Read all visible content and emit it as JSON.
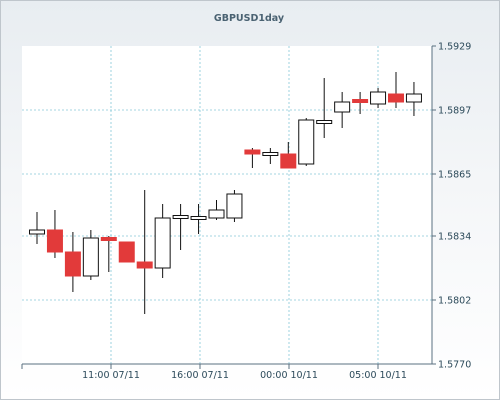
{
  "chart_data": {
    "type": "candlestick",
    "title": "GBPUSD1day",
    "y_ticks": [
      "1.5929",
      "1.5897",
      "1.5865",
      "1.5834",
      "1.5802",
      "1.5770"
    ],
    "ylim": [
      1.577,
      1.5929
    ],
    "x_ticks": [
      "11:00 07/11",
      "16:00 07/11",
      "00:00 10/11",
      "05:00 10/11"
    ],
    "grid": true,
    "candles": [
      {
        "open": 1.5835,
        "high": 1.5846,
        "low": 1.583,
        "close": 1.5837
      },
      {
        "open": 1.5837,
        "high": 1.5847,
        "low": 1.5823,
        "close": 1.5826
      },
      {
        "open": 1.5826,
        "high": 1.5836,
        "low": 1.5806,
        "close": 1.5814
      },
      {
        "open": 1.5814,
        "high": 1.5837,
        "low": 1.5812,
        "close": 1.5833
      },
      {
        "open": 1.5833,
        "high": 1.5834,
        "low": 1.5816,
        "close": 1.5832
      },
      {
        "open": 1.5831,
        "high": 1.5831,
        "low": 1.5821,
        "close": 1.5821
      },
      {
        "open": 1.5821,
        "high": 1.5857,
        "low": 1.5795,
        "close": 1.5818
      },
      {
        "open": 1.5818,
        "high": 1.585,
        "low": 1.5813,
        "close": 1.5843
      },
      {
        "open": 1.5843,
        "high": 1.585,
        "low": 1.5827,
        "close": 1.5844
      },
      {
        "open": 1.5843,
        "high": 1.585,
        "low": 1.5835,
        "close": 1.5843
      },
      {
        "open": 1.5843,
        "high": 1.5852,
        "low": 1.5842,
        "close": 1.5847
      },
      {
        "open": 1.5843,
        "high": 1.5857,
        "low": 1.5841,
        "close": 1.5855
      },
      {
        "open": 1.5877,
        "high": 1.5878,
        "low": 1.5868,
        "close": 1.5875
      },
      {
        "open": 1.5875,
        "high": 1.5878,
        "low": 1.587,
        "close": 1.5875
      },
      {
        "open": 1.5875,
        "high": 1.5881,
        "low": 1.5868,
        "close": 1.5868
      },
      {
        "open": 1.587,
        "high": 1.5893,
        "low": 1.5869,
        "close": 1.5892
      },
      {
        "open": 1.5891,
        "high": 1.5913,
        "low": 1.5883,
        "close": 1.5891
      },
      {
        "open": 1.5896,
        "high": 1.5906,
        "low": 1.5888,
        "close": 1.5901
      },
      {
        "open": 1.5902,
        "high": 1.5906,
        "low": 1.5895,
        "close": 1.5901
      },
      {
        "open": 1.59,
        "high": 1.5908,
        "low": 1.5898,
        "close": 1.5906
      },
      {
        "open": 1.5905,
        "high": 1.5916,
        "low": 1.5898,
        "close": 1.5901
      },
      {
        "open": 1.5901,
        "high": 1.5911,
        "low": 1.5894,
        "close": 1.5905
      }
    ],
    "colors": {
      "up_fill": "#ffffff",
      "down_fill": "#e23a3a",
      "outline": "#111111",
      "grid": "#86c8d8",
      "plot_bg": "#ffffff",
      "axis": "#5a7080"
    }
  }
}
